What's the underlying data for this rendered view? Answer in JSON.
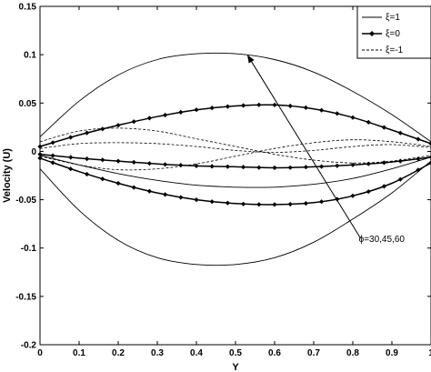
{
  "chart_data": {
    "type": "line",
    "xlabel": "Y",
    "ylabel": "Velocity (U)",
    "xlim": [
      0,
      1
    ],
    "ylim": [
      -0.2,
      0.15
    ],
    "xticks": [
      "0",
      "0.1",
      "0.2",
      "0.3",
      "0.4",
      "0.5",
      "0.6",
      "0.7",
      "0.8",
      "0.9",
      "1"
    ],
    "yticks": [
      "0.15",
      "0.1",
      "0.05",
      "0",
      "-0.05",
      "-0.1",
      "-0.15",
      "-0.2"
    ],
    "grid": false,
    "legend_position": "top-right",
    "legend": [
      {
        "label": "ξ=1",
        "style": "solid"
      },
      {
        "label": "ξ=0",
        "style": "diamond"
      },
      {
        "label": "ξ=-1",
        "style": "dashed"
      }
    ],
    "annotation": {
      "text": "ϕ=30,45,60",
      "arrow_from": [
        0.82,
        -0.09
      ],
      "arrow_to": [
        0.53,
        0.1
      ]
    },
    "series": [
      {
        "legend": "ξ=1",
        "style": "solid",
        "x": [
          0,
          0.1,
          0.2,
          0.3,
          0.4,
          0.5,
          0.6,
          0.7,
          0.8,
          0.9,
          1
        ],
        "y": [
          0.015,
          0.052,
          0.079,
          0.095,
          0.101,
          0.101,
          0.095,
          0.082,
          0.062,
          0.038,
          0.01
        ]
      },
      {
        "legend": "ξ=1",
        "style": "solid",
        "x": [
          0,
          0.1,
          0.2,
          0.3,
          0.4,
          0.5,
          0.6,
          0.7,
          0.8,
          0.9,
          1
        ],
        "y": [
          -0.018,
          -0.061,
          -0.092,
          -0.11,
          -0.117,
          -0.117,
          -0.11,
          -0.094,
          -0.07,
          -0.043,
          -0.01
        ]
      },
      {
        "legend": "ξ=1",
        "style": "solid",
        "x": [
          0,
          0.1,
          0.2,
          0.3,
          0.4,
          0.5,
          0.6,
          0.7,
          0.8,
          0.9,
          1
        ],
        "y": [
          -0.004,
          -0.014,
          -0.023,
          -0.03,
          -0.035,
          -0.037,
          -0.037,
          -0.034,
          -0.028,
          -0.018,
          -0.006
        ]
      },
      {
        "legend": "ξ=0",
        "style": "diamond",
        "x": [
          0,
          0.1,
          0.2,
          0.3,
          0.4,
          0.5,
          0.6,
          0.7,
          0.8,
          0.9,
          1
        ],
        "y": [
          0.005,
          0.017,
          0.027,
          0.036,
          0.043,
          0.047,
          0.048,
          0.044,
          0.035,
          0.022,
          0.008
        ]
      },
      {
        "legend": "ξ=0",
        "style": "diamond",
        "x": [
          0,
          0.1,
          0.2,
          0.3,
          0.4,
          0.5,
          0.6,
          0.7,
          0.8,
          0.9,
          1
        ],
        "y": [
          -0.003,
          -0.007,
          -0.01,
          -0.013,
          -0.015,
          -0.016,
          -0.017,
          -0.016,
          -0.014,
          -0.011,
          -0.006
        ]
      },
      {
        "legend": "ξ=0",
        "style": "diamond",
        "x": [
          0,
          0.1,
          0.2,
          0.3,
          0.4,
          0.5,
          0.6,
          0.7,
          0.8,
          0.9,
          1
        ],
        "y": [
          -0.007,
          -0.021,
          -0.033,
          -0.043,
          -0.05,
          -0.054,
          -0.055,
          -0.053,
          -0.046,
          -0.033,
          -0.012
        ]
      },
      {
        "legend": "ξ=-1",
        "style": "dashed",
        "x": [
          0,
          0.1,
          0.2,
          0.3,
          0.4,
          0.5,
          0.6,
          0.7,
          0.8,
          0.9,
          1
        ],
        "y": [
          0.01,
          0.021,
          0.024,
          0.021,
          0.013,
          0.005,
          -0.003,
          -0.009,
          -0.012,
          -0.01,
          -0.004
        ]
      },
      {
        "legend": "ξ=-1",
        "style": "dashed",
        "x": [
          0,
          0.1,
          0.2,
          0.3,
          0.4,
          0.5,
          0.6,
          0.7,
          0.8,
          0.9,
          1
        ],
        "y": [
          0.003,
          0.008,
          0.009,
          0.008,
          0.005,
          0.001,
          -0.001,
          0.001,
          0.005,
          0.007,
          0.004
        ]
      },
      {
        "legend": "ξ=-1",
        "style": "dashed",
        "x": [
          0,
          0.1,
          0.2,
          0.3,
          0.4,
          0.5,
          0.6,
          0.7,
          0.8,
          0.9,
          1
        ],
        "y": [
          -0.005,
          -0.014,
          -0.019,
          -0.018,
          -0.013,
          -0.005,
          0.003,
          0.009,
          0.012,
          0.01,
          0.005
        ]
      }
    ]
  }
}
